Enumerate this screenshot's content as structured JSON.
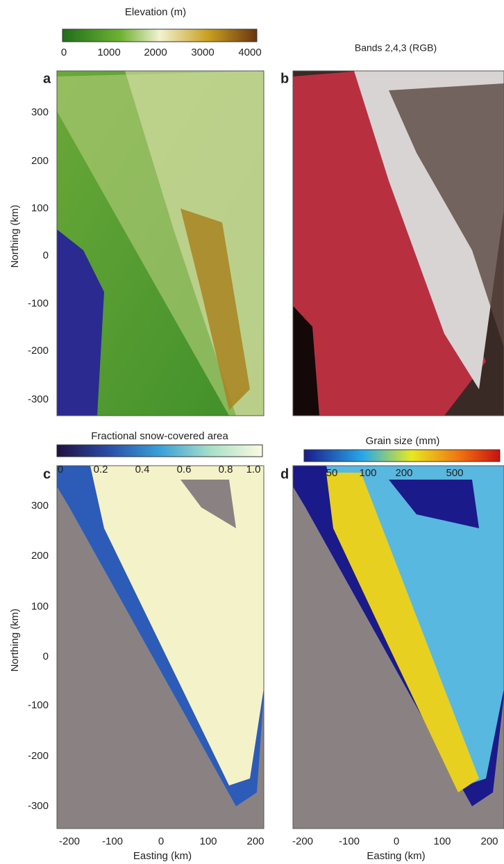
{
  "elevation_colorbar": {
    "title": "Elevation (m)",
    "ticks": [
      "0",
      "1000",
      "2000",
      "3000",
      "4000"
    ]
  },
  "rgb_title": "Bands 2,4,3 (RGB)",
  "fsca_colorbar": {
    "title": "Fractional snow-covered area",
    "ticks": [
      "0",
      "0.2",
      "0.4",
      "0.6",
      "0.8",
      "1.0"
    ]
  },
  "grain_colorbar": {
    "title": "Grain size (mm)",
    "ticks": [
      "50",
      "100",
      "200",
      "500"
    ]
  },
  "panels": [
    {
      "label": "a",
      "y_axis": {
        "label": "Northing (km)",
        "ticks": [
          "300",
          "200",
          "100",
          "0",
          "-100",
          "-200",
          "-300"
        ]
      }
    },
    {
      "label": "b"
    },
    {
      "label": "c",
      "y_axis": {
        "label": "Northing (km)",
        "ticks": [
          "300",
          "200",
          "100",
          "0",
          "-100",
          "-200",
          "-300"
        ]
      },
      "x_axis": {
        "label": "Easting (km)",
        "ticks": [
          "-200",
          "-100",
          "0",
          "100",
          "200"
        ]
      }
    },
    {
      "label": "d",
      "x_axis": {
        "label": "Easting (km)",
        "ticks": [
          "-200",
          "-100",
          "0",
          "100",
          "200"
        ]
      }
    }
  ]
}
